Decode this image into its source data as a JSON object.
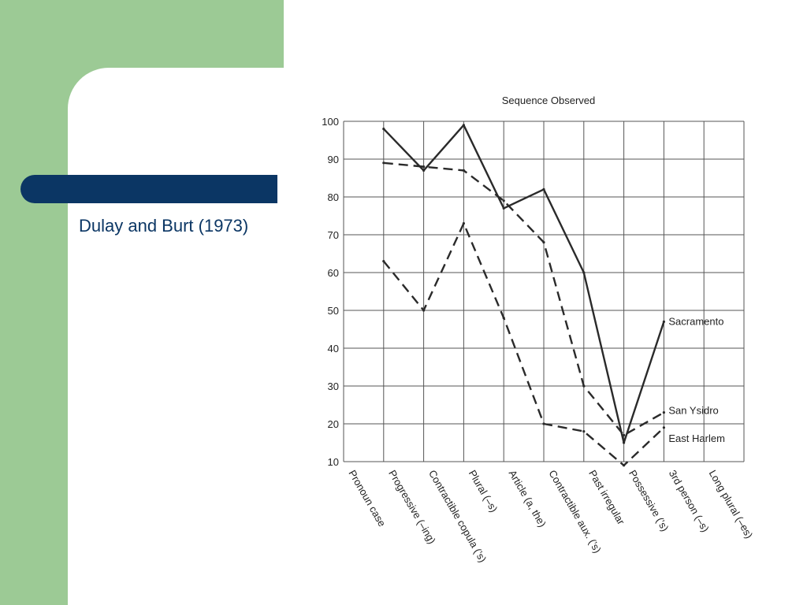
{
  "slide": {
    "title": "Dulay and Burt (1973)"
  },
  "colors": {
    "background_green": "#9cca95",
    "navy_accent": "#0b3664",
    "panel": "#ffffff"
  },
  "chart_data": {
    "type": "line",
    "title": "Sequence Observed",
    "xlabel": "",
    "ylabel": "",
    "ylim": [
      10,
      100
    ],
    "yticks": [
      10,
      20,
      30,
      40,
      50,
      60,
      70,
      80,
      90,
      100
    ],
    "grid": true,
    "categories": [
      "Pronoun case",
      "Progressive (–ing)",
      "Contractible copula (’s)",
      "Plural (–s)",
      "Article (a, the)",
      "Contractible aux. (’s)",
      "Past irregular",
      "Possessive (’s)",
      "3rd person (–s)",
      "Long plural (–es)"
    ],
    "series": [
      {
        "name": "Sacramento",
        "style": "solid",
        "values": [
          null,
          98,
          87,
          99,
          77,
          82,
          60,
          15,
          47,
          null
        ]
      },
      {
        "name": "San Ysidro",
        "style": "dashed",
        "values": [
          null,
          89,
          88,
          87,
          79,
          68,
          30,
          17,
          23,
          null
        ]
      },
      {
        "name": "East Harlem",
        "style": "dashed",
        "values": [
          null,
          63,
          50,
          73,
          48,
          20,
          18,
          9,
          19,
          null
        ]
      }
    ]
  }
}
